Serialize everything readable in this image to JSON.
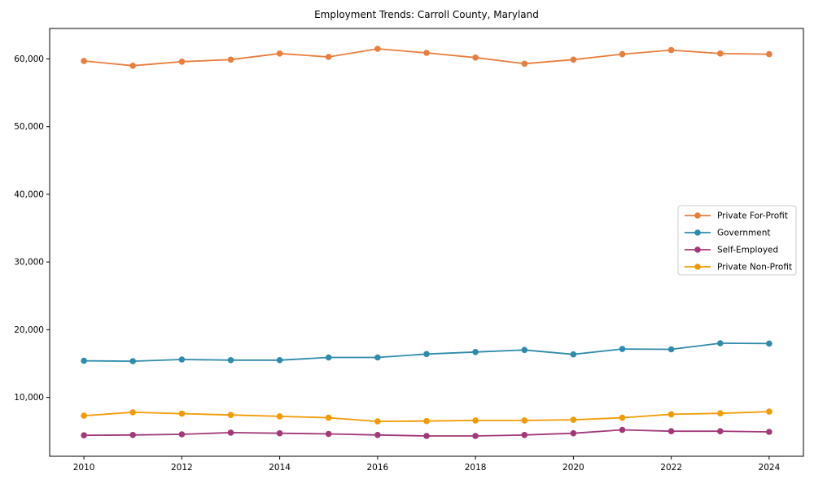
{
  "chart_data": {
    "type": "line",
    "title": "Employment Trends: Carroll County, Maryland",
    "xlabel": "",
    "ylabel": "",
    "grid": false,
    "legend_position": "center right",
    "marker": "circle",
    "x": [
      2010,
      2011,
      2012,
      2013,
      2014,
      2015,
      2016,
      2017,
      2018,
      2019,
      2020,
      2021,
      2022,
      2023,
      2024
    ],
    "x_ticks": [
      2010,
      2012,
      2014,
      2016,
      2018,
      2020,
      2022,
      2024
    ],
    "y_ticks": [
      10000,
      20000,
      30000,
      40000,
      50000,
      60000
    ],
    "y_tick_labels": [
      "10,000",
      "20,000",
      "30,000",
      "40,000",
      "50,000",
      "60,000"
    ],
    "xlim": [
      2009.3,
      2024.7
    ],
    "ylim": [
      1300,
      64500
    ],
    "series": [
      {
        "name": "Private For-Profit",
        "color": "#e87d3c",
        "values": [
          59700,
          59000,
          59600,
          59900,
          60800,
          60300,
          61500,
          60900,
          60200,
          59300,
          59900,
          60700,
          61300,
          60800,
          60700
        ]
      },
      {
        "name": "Government",
        "color": "#2e8bab",
        "values": [
          15400,
          15350,
          15600,
          15500,
          15500,
          15900,
          15900,
          16400,
          16700,
          17000,
          16350,
          17150,
          17100,
          18000,
          17950
        ]
      },
      {
        "name": "Self-Employed",
        "color": "#a23878",
        "values": [
          4400,
          4450,
          4550,
          4800,
          4700,
          4600,
          4450,
          4300,
          4300,
          4450,
          4700,
          5200,
          5000,
          5000,
          4900
        ]
      },
      {
        "name": "Private Non-Profit",
        "color": "#f29a02",
        "values": [
          7300,
          7800,
          7600,
          7400,
          7200,
          7000,
          6450,
          6500,
          6600,
          6600,
          6700,
          7000,
          7500,
          7650,
          7900
        ]
      }
    ]
  }
}
